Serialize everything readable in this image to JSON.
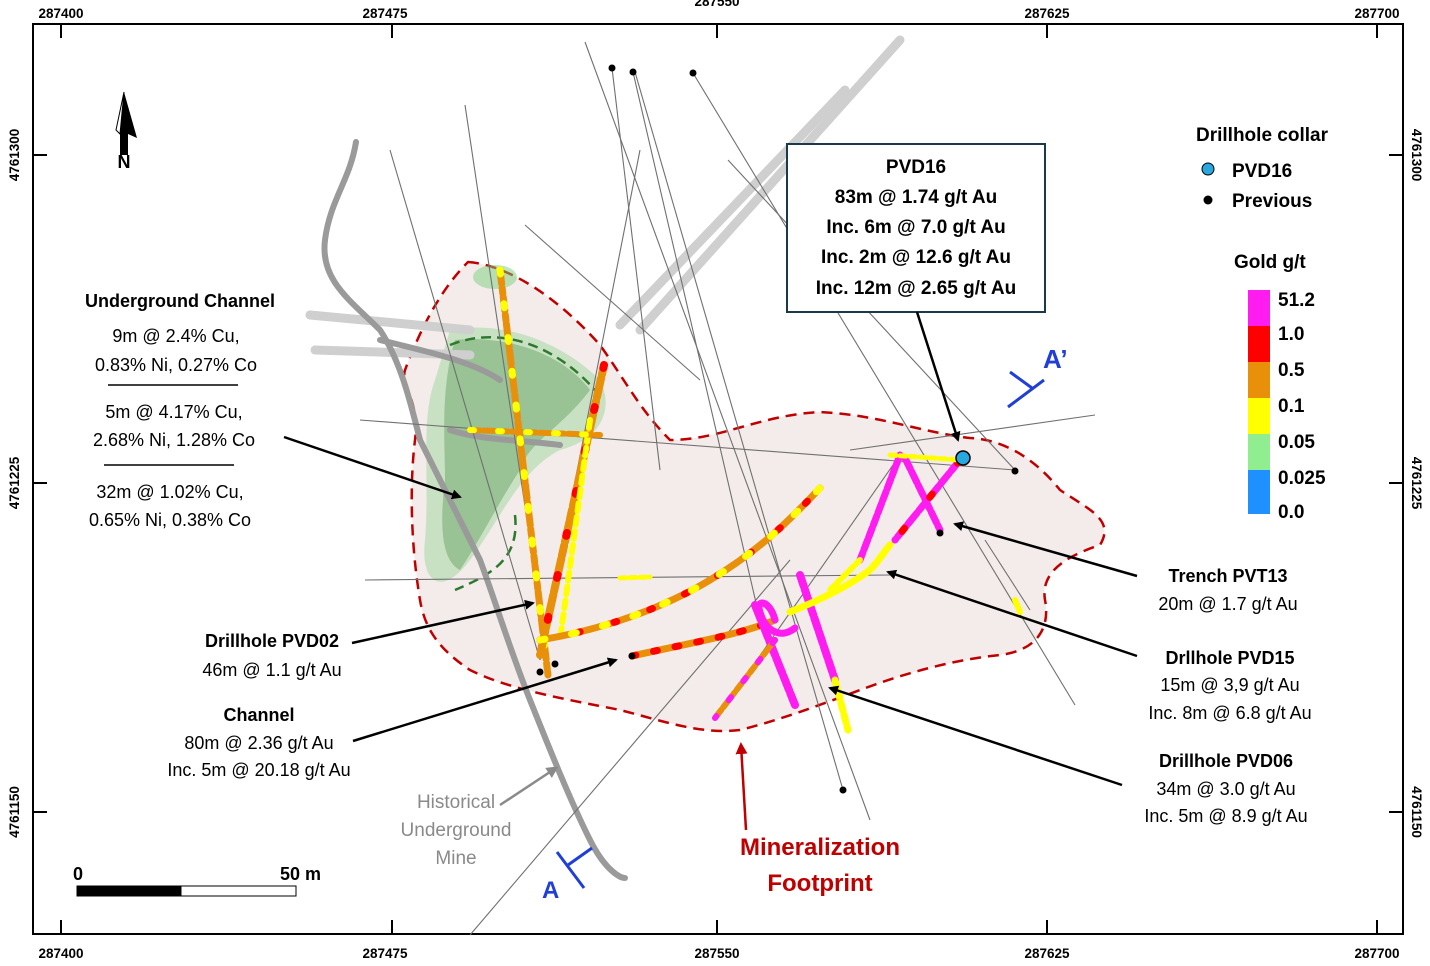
{
  "coords": {
    "top_x": [
      "287400",
      "287475",
      "287550",
      "287625",
      "287700"
    ],
    "bottom_x": [
      "287400",
      "287475",
      "287550",
      "287625",
      "287700"
    ],
    "left_y": [
      "4761300",
      "4761225",
      "4761150"
    ],
    "right_y": [
      "4761300",
      "4761225",
      "4761150"
    ]
  },
  "legend": {
    "collar_title": "Drillhole collar",
    "collar_items": [
      {
        "label": "PVD16",
        "color": "#29a8e0"
      },
      {
        "label": "Previous",
        "color": "#000000"
      }
    ],
    "gold_title": "Gold g/t",
    "gold_scale": [
      {
        "label": "51.2",
        "color": "#ff1cf0"
      },
      {
        "label": "1.0",
        "color": "#ff0000"
      },
      {
        "label": "0.5",
        "color": "#e8900a"
      },
      {
        "label": "0.1",
        "color": "#ffff00"
      },
      {
        "label": "0.05",
        "color": "#90ee90"
      },
      {
        "label": "0.025",
        "color": "#1e90ff"
      },
      {
        "label": "0.0",
        "color": "#1e90ff"
      }
    ]
  },
  "callouts": {
    "pvd16": {
      "title": "PVD16",
      "lines": [
        "83m @ 1.74 g/t Au",
        "Inc. 6m @ 7.0 g/t Au",
        "Inc. 2m @ 12.6 g/t Au",
        "Inc. 12m @ 2.65 g/t Au"
      ]
    },
    "underground_channel": {
      "title": "Underground Channel",
      "blocks": [
        [
          "9m @ 2.4% Cu,",
          "0.83% Ni, 0.27% Co"
        ],
        [
          "5m @ 4.17% Cu,",
          "2.68% Ni, 1.28% Co"
        ],
        [
          "32m @ 1.02% Cu,",
          "0.65% Ni, 0.38% Co"
        ]
      ]
    },
    "pvd02": {
      "title": "Drillhole PVD02",
      "lines": [
        "46m @ 1.1 g/t Au"
      ]
    },
    "channel": {
      "title": "Channel",
      "lines": [
        "80m @ 2.36 g/t Au",
        "Inc. 5m @ 20.18 g/t Au"
      ]
    },
    "trench": {
      "title": "Trench PVT13",
      "lines": [
        "20m @ 1.7 g/t Au"
      ]
    },
    "pvd15": {
      "title": "Drllhole PVD15",
      "lines": [
        "15m @ 3,9 g/t Au",
        "Inc. 8m @ 6.8 g/t Au"
      ]
    },
    "pvd06": {
      "title": "Drillhole PVD06",
      "lines": [
        "34m @ 3.0 g/t Au",
        "Inc. 5m @ 8.9 g/t Au"
      ]
    }
  },
  "labels": {
    "historical_mine": [
      "Historical",
      "Underground",
      "Mine"
    ],
    "mineralization": [
      "Mineralization",
      "Footprint"
    ],
    "section_a": "A",
    "section_a_prime": "A’",
    "north": "N"
  },
  "scale_bar": {
    "start": "0",
    "end": "50 m"
  },
  "colors": {
    "footprint_line": "#c00000",
    "footprint_fill": "#f3ecea",
    "section_line": "#1f3fd6",
    "callout_border": "#1a3a4a",
    "mine_gray": "#8a8a8a"
  }
}
